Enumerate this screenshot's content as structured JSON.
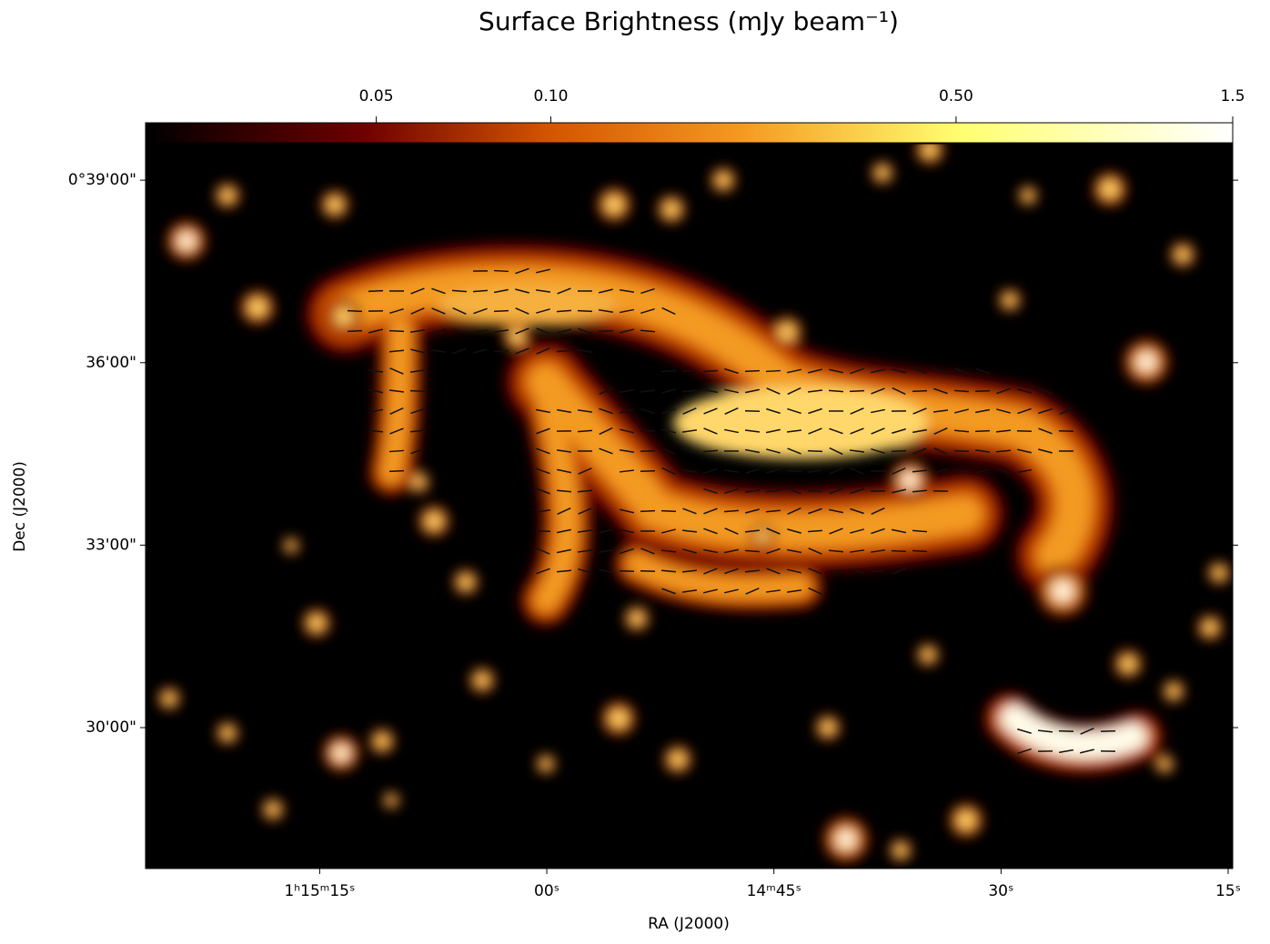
{
  "chart_data": {
    "type": "image",
    "title": "Surface Brightness (mJy beam⁻¹)",
    "xlabel": "RA (J2000)",
    "ylabel": "Dec (J2000)",
    "colorbar": {
      "scale": "log",
      "lim": [
        0.02,
        1.5
      ],
      "ticks": [
        0.05,
        {
          "value": 0.1,
          "label": "0.10"
        },
        {
          "value": 0.5,
          "label": "0.50"
        },
        1.5
      ]
    },
    "xlim": [
      4526.5,
      4454.7
    ],
    "xticks": [
      {
        "value": 4515,
        "label": "1ʰ15ᵐ15ˢ"
      },
      {
        "value": 4500,
        "label": "00ˢ"
      },
      {
        "value": 4485,
        "label": "14ᵐ45ˢ"
      },
      {
        "value": 4470,
        "label": "30ˢ"
      },
      {
        "value": 4455,
        "label": "15ˢ"
      }
    ],
    "ylim": [
      1661,
      2376
    ],
    "yticks": [
      {
        "value": 2340,
        "label": "0°39'00\""
      },
      {
        "value": 2160,
        "label": "36'00\""
      },
      {
        "value": 1980,
        "label": "33'00\""
      },
      {
        "value": 1800,
        "label": "30'00\""
      }
    ]
  }
}
